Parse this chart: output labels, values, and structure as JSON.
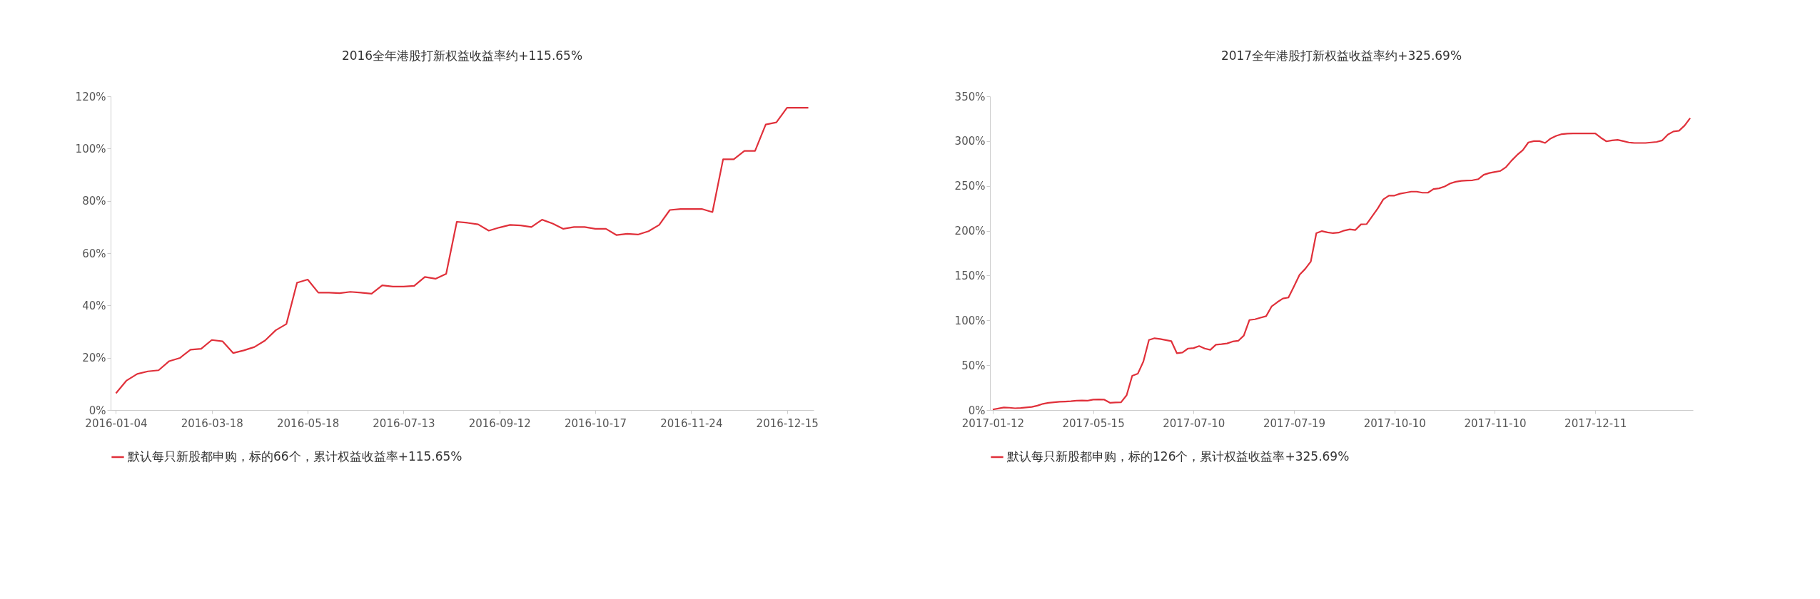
{
  "chart_data": [
    {
      "type": "line",
      "title": "2016全年港股打新权益收益率约+115.65%",
      "categories": [
        "2016-01-04",
        null,
        null,
        null,
        null,
        null,
        null,
        null,
        null,
        "2016-03-18",
        null,
        null,
        null,
        null,
        null,
        null,
        null,
        null,
        "2016-05-18",
        null,
        null,
        null,
        null,
        null,
        null,
        null,
        null,
        "2016-07-13",
        null,
        null,
        null,
        null,
        null,
        null,
        null,
        null,
        "2016-09-12",
        null,
        null,
        null,
        null,
        null,
        null,
        null,
        null,
        "2016-10-17",
        null,
        null,
        null,
        null,
        null,
        null,
        null,
        null,
        "2016-11-24",
        null,
        null,
        null,
        null,
        null,
        null,
        null,
        null,
        "2016-12-15",
        null,
        null
      ],
      "series": [
        {
          "name": "默认每只新股都申购，标的66个，累计权益收益率+115.65%",
          "color": "#e0303a",
          "values": [
            6.4,
            11.3,
            13.8,
            14.8,
            15.2,
            18.7,
            19.9,
            23.1,
            23.4,
            26.8,
            26.3,
            21.8,
            22.8,
            24.1,
            26.6,
            30.5,
            32.9,
            48.7,
            49.9,
            44.9,
            44.9,
            44.7,
            45.2,
            44.9,
            44.5,
            47.7,
            47.2,
            47.2,
            47.5,
            50.9,
            50.2,
            52.1,
            72.0,
            71.6,
            71.0,
            68.6,
            69.8,
            70.8,
            70.6,
            70.0,
            72.8,
            71.3,
            69.3,
            70.0,
            70.0,
            69.3,
            69.3,
            66.9,
            67.4,
            67.1,
            68.4,
            70.8,
            76.5,
            76.9,
            76.9,
            76.9,
            75.7,
            95.9,
            95.9,
            99.1,
            99.1,
            109.2,
            110.0,
            115.6,
            115.6,
            115.6
          ]
        }
      ],
      "ylim": [
        0,
        120
      ],
      "yticks": [
        {
          "value": 0,
          "label": "0%"
        },
        {
          "value": 20,
          "label": "20%"
        },
        {
          "value": 40,
          "label": "40%"
        },
        {
          "value": 60,
          "label": "60%"
        },
        {
          "value": 80,
          "label": "80%"
        },
        {
          "value": 100,
          "label": "100%"
        },
        {
          "value": 120,
          "label": "120%"
        }
      ],
      "grid": false,
      "legend": "bottom",
      "marker": "none",
      "line_style": "solid"
    },
    {
      "type": "line",
      "title": "2017全年港股打新权益收益率约+325.69%",
      "categories": [
        "2017-01-12",
        null,
        null,
        null,
        null,
        null,
        null,
        null,
        null,
        null,
        null,
        null,
        null,
        null,
        null,
        null,
        null,
        null,
        "2017-05-15",
        null,
        null,
        null,
        null,
        null,
        null,
        null,
        null,
        null,
        null,
        null,
        null,
        null,
        null,
        null,
        null,
        null,
        "2017-07-10",
        null,
        null,
        null,
        null,
        null,
        null,
        null,
        null,
        null,
        null,
        null,
        null,
        null,
        null,
        null,
        null,
        null,
        "2017-07-19",
        null,
        null,
        null,
        null,
        null,
        null,
        null,
        null,
        null,
        null,
        null,
        null,
        null,
        null,
        null,
        null,
        null,
        "2017-10-10",
        null,
        null,
        null,
        null,
        null,
        null,
        null,
        null,
        null,
        null,
        null,
        null,
        null,
        null,
        null,
        null,
        null,
        "2017-11-10",
        null,
        null,
        null,
        null,
        null,
        null,
        null,
        null,
        null,
        null,
        null,
        null,
        null,
        null,
        null,
        null,
        null,
        "2017-12-11",
        null,
        null,
        null,
        null,
        null,
        null,
        null,
        null,
        null,
        null,
        null,
        null,
        null,
        null,
        null,
        null,
        null
      ],
      "series": [
        {
          "name": "默认每只新股都申购，标的126个，累计权益收益率+325.69%",
          "color": "#e0303a",
          "values": [
            0.6,
            1.7,
            2.9,
            2.6,
            2.0,
            2.3,
            2.9,
            3.5,
            4.9,
            6.9,
            8.1,
            8.7,
            9.3,
            9.5,
            9.8,
            10.4,
            10.7,
            10.4,
            11.6,
            11.9,
            11.6,
            8.1,
            8.4,
            8.7,
            16.5,
            38.2,
            40.5,
            54.1,
            78.1,
            80.1,
            79.3,
            78.1,
            76.9,
            63.4,
            64.2,
            68.6,
            69.1,
            71.4,
            68.6,
            67.1,
            72.9,
            73.5,
            74.3,
            76.4,
            77.2,
            83.0,
            100.4,
            101.2,
            103.0,
            104.7,
            115.7,
            120.3,
            124.4,
            125.5,
            138.0,
            151.0,
            157.4,
            165.5,
            197.3,
            199.6,
            198.2,
            197.3,
            197.9,
            200.2,
            201.6,
            200.8,
            207.1,
            207.4,
            216.1,
            224.8,
            234.9,
            239.2,
            239.2,
            241.3,
            242.4,
            243.6,
            243.6,
            242.4,
            242.4,
            246.5,
            247.3,
            249.4,
            252.8,
            254.6,
            255.7,
            256.0,
            256.3,
            257.5,
            262.4,
            264.4,
            265.6,
            266.7,
            271.0,
            278.3,
            284.6,
            289.8,
            298.5,
            300.0,
            300.0,
            297.9,
            302.9,
            305.8,
            307.8,
            308.4,
            308.6,
            308.6,
            308.6,
            308.6,
            308.6,
            303.7,
            299.7,
            300.8,
            301.4,
            300.0,
            298.5,
            297.9,
            297.9,
            297.9,
            298.5,
            299.1,
            300.8,
            307.2,
            310.7,
            311.5,
            317.3,
            325.7
          ]
        }
      ],
      "ylim": [
        0,
        350
      ],
      "yticks": [
        {
          "value": 0,
          "label": "0%"
        },
        {
          "value": 50,
          "label": "50%"
        },
        {
          "value": 100,
          "label": "100%"
        },
        {
          "value": 150,
          "label": "150%"
        },
        {
          "value": 200,
          "label": "200%"
        },
        {
          "value": 250,
          "label": "250%"
        },
        {
          "value": 300,
          "label": "300%"
        },
        {
          "value": 350,
          "label": "350%"
        }
      ],
      "grid": false,
      "legend": "bottom",
      "marker": "none",
      "line_style": "solid"
    }
  ]
}
